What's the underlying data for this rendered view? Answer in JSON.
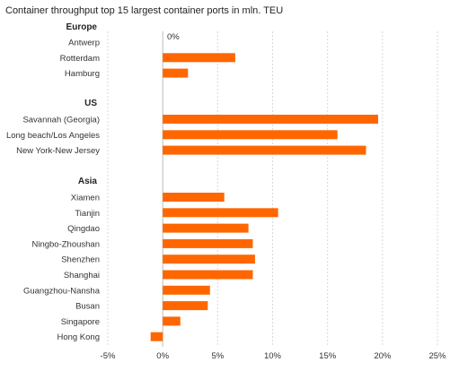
{
  "chart_data": {
    "type": "bar",
    "orientation": "horizontal",
    "title": "Container throughput top 15 largest container ports in mln. TEU",
    "xlim": [
      -5,
      25
    ],
    "x_ticks": [
      "-5%",
      "0%",
      "5%",
      "10%",
      "15%",
      "20%",
      "25%"
    ],
    "zero_label": "0%",
    "grid": true,
    "bar_color": "#ff6600",
    "groups": [
      {
        "name": "Europe",
        "categories": [
          "Antwerp",
          "Rotterdam",
          "Hamburg"
        ],
        "values": [
          0,
          6.6,
          2.3
        ]
      },
      {
        "name": "US",
        "categories": [
          "Savannah (Georgia)",
          "Long beach/Los Angeles",
          "New York-New Jersey"
        ],
        "values": [
          19.6,
          15.9,
          18.5
        ]
      },
      {
        "name": "Asia",
        "categories": [
          "Xiamen",
          "Tianjin",
          "Qingdao",
          "Ningbo-Zhoushan",
          "Shenzhen",
          "Shanghai",
          "Guangzhou-Nansha",
          "Busan",
          "Singapore",
          "Hong Kong"
        ],
        "values": [
          5.6,
          10.5,
          7.8,
          8.2,
          8.4,
          8.2,
          4.3,
          4.1,
          1.6,
          -1.1
        ]
      }
    ]
  }
}
